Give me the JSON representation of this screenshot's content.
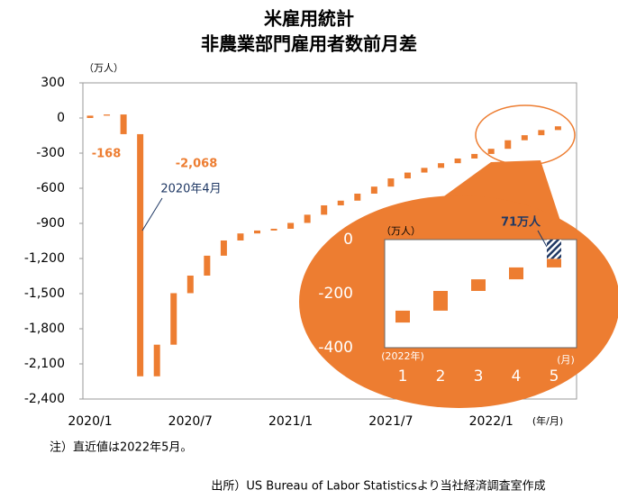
{
  "chart_data": {
    "type": "waterfall",
    "title": "米雇用統計",
    "subtitle": "非農業部門雇用者数前月差",
    "y_unit": "（万人）",
    "x_unit": "(年/月)",
    "note": "注）直近値は2022年5月。",
    "source": "出所）US Bureau of Labor Statisticsより当社経済調査室作成",
    "color": "#ed7d31",
    "categories": [
      "2020/1",
      null,
      null,
      null,
      null,
      null,
      "2020/7",
      null,
      null,
      null,
      null,
      null,
      "2021/1",
      null,
      null,
      null,
      null,
      null,
      "2021/7",
      null,
      null,
      null,
      null,
      null,
      "2022/1",
      null,
      null,
      null,
      null
    ],
    "values": [
      20,
      10,
      -168,
      -2068,
      270,
      440,
      150,
      170,
      130,
      60,
      25,
      15,
      50,
      70,
      80,
      40,
      60,
      60,
      70,
      50,
      40,
      40,
      40,
      39,
      44,
      73,
      43,
      44,
      32
    ],
    "value_labels": [
      null,
      null,
      "-168",
      "-2,068",
      null,
      null,
      null,
      null,
      null,
      null,
      null,
      null,
      null,
      null,
      null,
      null,
      null,
      null,
      null,
      null,
      null,
      null,
      null,
      null,
      null,
      null,
      null,
      null,
      null
    ],
    "annotation": "2020年4月",
    "ylim": [
      -2400,
      300
    ],
    "yticks": [
      300,
      0,
      -300,
      -600,
      -900,
      {
        "value": -1200,
        "label": "-1,200"
      },
      {
        "value": -1500,
        "label": "-1,500"
      },
      {
        "value": -1800,
        "label": "-1,800"
      },
      {
        "value": -2100,
        "label": "-2,100"
      },
      {
        "value": -2400,
        "label": "-2,400"
      }
    ],
    "inset": {
      "categories": [
        "1",
        "2",
        "3",
        "4",
        "5"
      ],
      "ylim": [
        -400,
        0
      ],
      "yticks": [
        0,
        -200,
        -400
      ],
      "y_unit": "（万人）",
      "x_unit": "(2022年)",
      "month_unit": "(月)",
      "annotation": "71万人"
    }
  }
}
